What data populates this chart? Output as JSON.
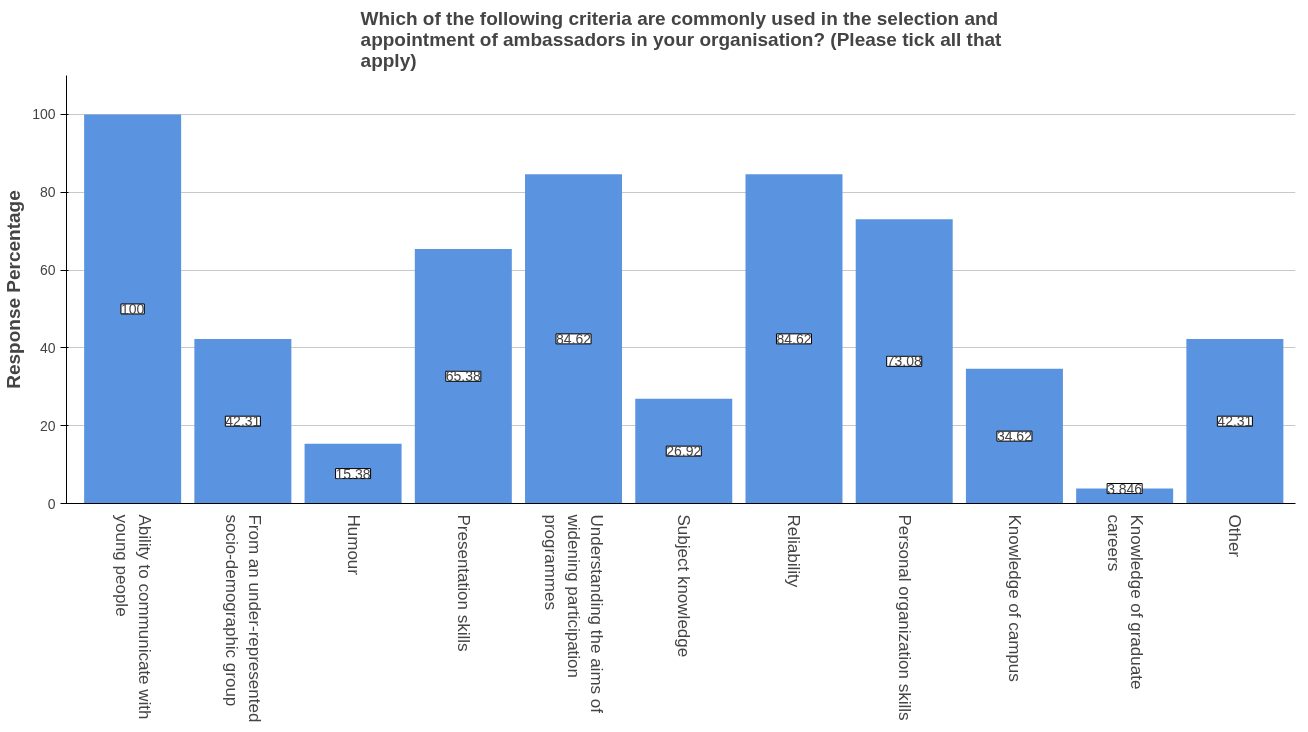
{
  "chart_data": {
    "type": "bar",
    "title": "Which of the following criteria are commonly used in the selection and appointment of ambassadors in your organisation? (Please tick all that apply)",
    "ylabel": "Response Percentage",
    "categories": [
      "Ability to communicate with young people",
      "From an under-represented socio-demographic group",
      "Humour",
      "Presentation skills",
      "Understanding the aims of widening participation programmes",
      "Subject knowledge",
      "Reliability",
      "Personal organization skills",
      "Knowledge of campus",
      "Knowledge of graduate careers",
      "Other"
    ],
    "values": [
      100,
      42.31,
      15.38,
      65.38,
      84.62,
      26.92,
      84.62,
      73.08,
      34.62,
      3.846,
      42.31
    ],
    "color": "#5a93e0",
    "ylim": [
      0,
      110
    ],
    "yticks": [
      0,
      20,
      40,
      60,
      80,
      100
    ],
    "grid": "y",
    "data_labels": true
  }
}
